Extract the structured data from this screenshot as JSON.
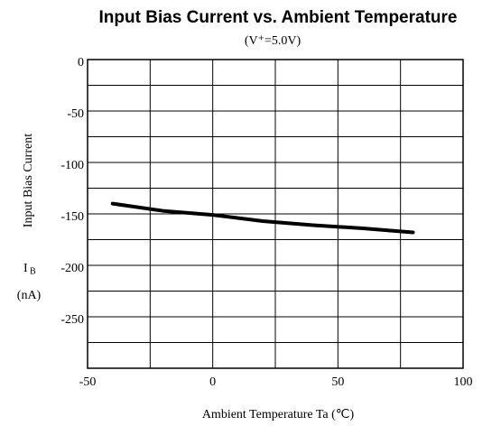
{
  "chart_data": {
    "type": "line",
    "title": "Input Bias Current vs. Ambient Temperature",
    "subtitle": "(V⁺=5.0V)",
    "x_label": "Ambient Temperature Ta (℃)",
    "y_label": "Input Bias Current",
    "y_symbol": "I",
    "y_symbol_subscript": "B",
    "y_unit": "(nA)",
    "x": [
      -40,
      -20,
      0,
      20,
      40,
      60,
      80
    ],
    "series": [
      {
        "name": "IB",
        "color": "#000000",
        "values": [
          -140,
          -147,
          -151,
          -157,
          -161,
          -164,
          -168
        ]
      }
    ],
    "xlim": [
      -50,
      100
    ],
    "xticks": [
      -50,
      0,
      50,
      100
    ],
    "ylim": [
      -300,
      0
    ],
    "yticks": [
      0,
      -50,
      -100,
      -150,
      -200,
      -250
    ],
    "xgrid": [
      -50,
      -25,
      0,
      25,
      50,
      75,
      100
    ],
    "ygrid": [
      0,
      -25,
      -50,
      -75,
      -100,
      -125,
      -150,
      -175,
      -200,
      -225,
      -250,
      -275,
      -300
    ],
    "grid": true
  }
}
